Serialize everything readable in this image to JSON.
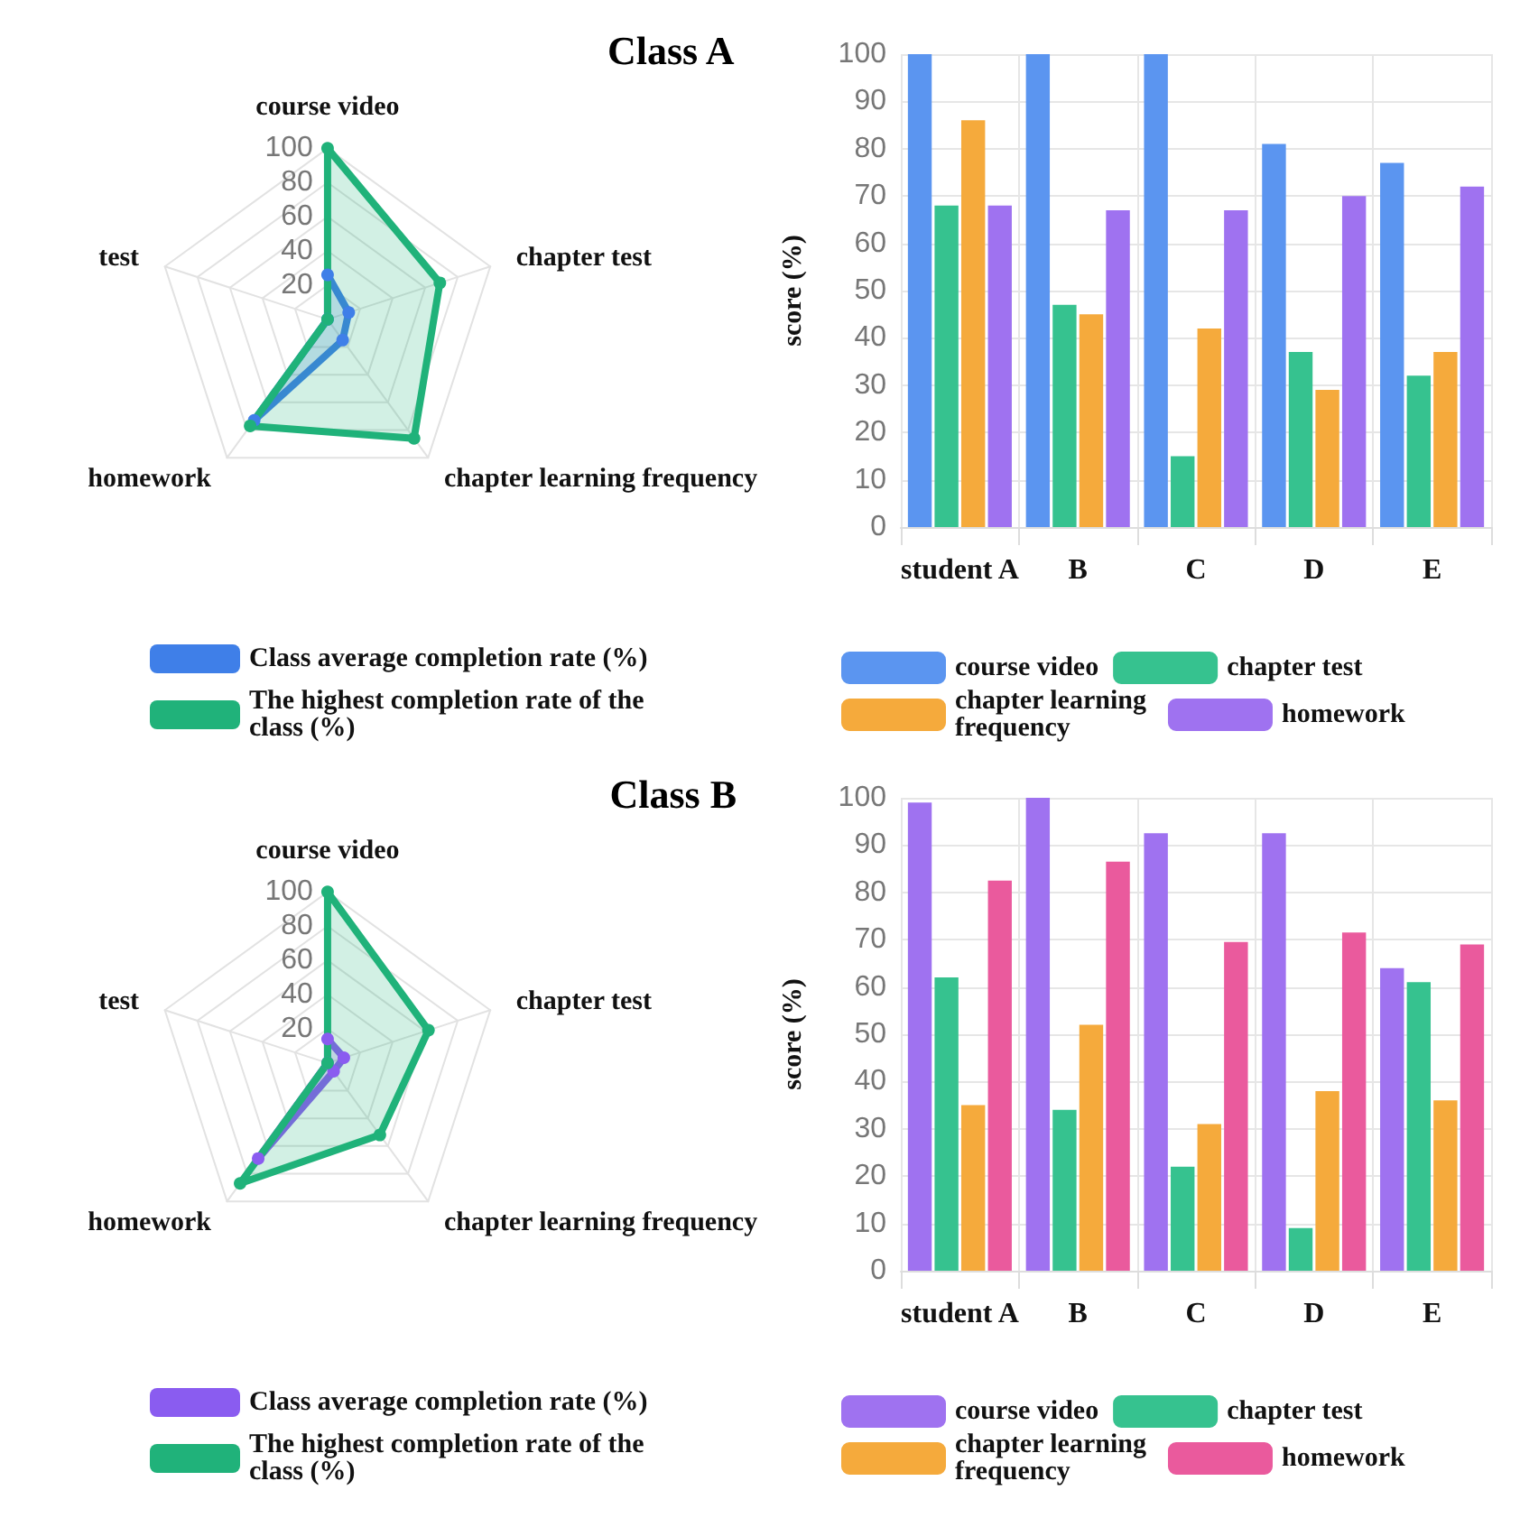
{
  "chart_data": [
    {
      "type": "radar",
      "title": "Class A",
      "categories": [
        "course video",
        "chapter test",
        "chapter learning frequency",
        "homework",
        "test"
      ],
      "ylim": [
        0,
        100
      ],
      "yticks": [
        20,
        40,
        60,
        80,
        100
      ],
      "grid": true,
      "legend": "bottom",
      "marker": "circle",
      "series": [
        {
          "name": "Class average completion rate (%)",
          "color": "#3f7fe8",
          "values": [
            26,
            13,
            15,
            73,
            0
          ]
        },
        {
          "name": "The highest completion rate of the class (%)",
          "color": "#20b27a",
          "values": [
            100,
            69,
            86,
            77,
            0
          ]
        }
      ]
    },
    {
      "type": "bar",
      "categories": [
        "student A",
        "B",
        "C",
        "D",
        "E"
      ],
      "ylabel": "score (%)",
      "ylim": [
        0,
        100
      ],
      "yticks": [
        0,
        10,
        20,
        30,
        40,
        50,
        60,
        70,
        80,
        90,
        100
      ],
      "grid": true,
      "legend": "bottom",
      "series": [
        {
          "name": "course video",
          "color": "#5b95f0",
          "values": [
            100,
            100,
            100,
            81,
            77
          ]
        },
        {
          "name": "chapter test",
          "color": "#36c28f",
          "values": [
            68,
            47,
            15,
            37,
            32
          ]
        },
        {
          "name": "chapter learning frequency",
          "color": "#f5aa3c",
          "values": [
            86,
            45,
            42,
            29,
            37
          ]
        },
        {
          "name": "homework",
          "color": "#9f72f0",
          "values": [
            68,
            67,
            67,
            70,
            72
          ]
        }
      ]
    },
    {
      "type": "radar",
      "title": "Class B",
      "categories": [
        "course video",
        "chapter test",
        "chapter learning frequency",
        "homework",
        "test"
      ],
      "ylim": [
        0,
        100
      ],
      "yticks": [
        20,
        40,
        60,
        80,
        100
      ],
      "grid": true,
      "legend": "bottom",
      "marker": "circle",
      "series": [
        {
          "name": "Class average completion rate (%)",
          "color": "#8a5cf0",
          "values": [
            14,
            10,
            6,
            69,
            0
          ]
        },
        {
          "name": "The highest completion rate of the class (%)",
          "color": "#20b27a",
          "values": [
            100,
            62,
            52,
            87,
            0
          ]
        }
      ]
    },
    {
      "type": "bar",
      "categories": [
        "student A",
        "B",
        "C",
        "D",
        "E"
      ],
      "ylabel": "score (%)",
      "ylim": [
        0,
        100
      ],
      "yticks": [
        0,
        10,
        20,
        30,
        40,
        50,
        60,
        70,
        80,
        90,
        100
      ],
      "grid": true,
      "legend": "bottom",
      "series": [
        {
          "name": "course video",
          "color": "#9f72f0",
          "values": [
            99,
            100,
            92.5,
            92.5,
            64
          ]
        },
        {
          "name": "chapter test",
          "color": "#36c28f",
          "values": [
            62,
            34,
            22,
            9,
            61
          ]
        },
        {
          "name": "chapter learning frequency",
          "color": "#f5aa3c",
          "values": [
            35,
            52,
            31,
            38,
            36
          ]
        },
        {
          "name": "homework",
          "color": "#ea5a9d",
          "values": [
            82.5,
            86.5,
            69.5,
            71.5,
            69
          ]
        }
      ]
    }
  ]
}
